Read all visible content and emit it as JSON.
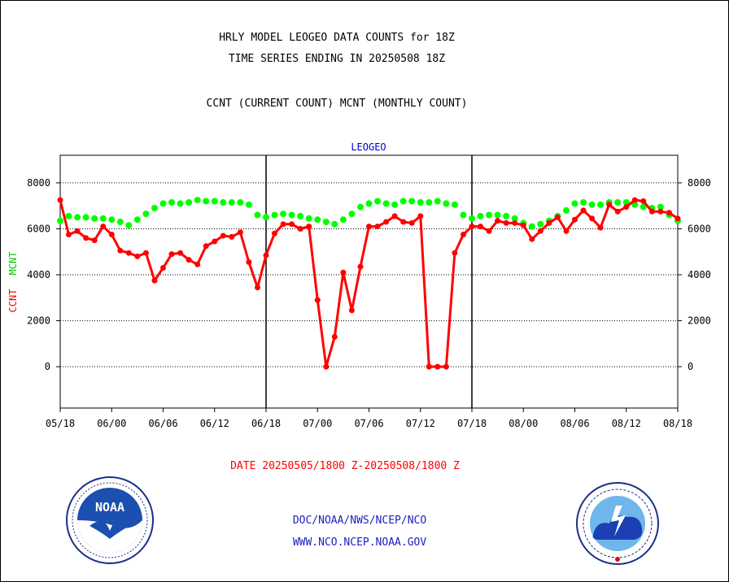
{
  "titles": {
    "line1": "HRLY MODEL LEOGEO DATA COUNTS for 18Z",
    "line2": "TIME SERIES ENDING IN 20250508 18Z",
    "line3": "CCNT (CURRENT COUNT) MCNT (MONTHLY COUNT)"
  },
  "date_range": "DATE 20250505/1800 Z-20250508/1800 Z",
  "footer": {
    "line1": "DOC/NOAA/NWS/NCEP/NCO",
    "line2": "WWW.NCO.NCEP.NOAA.GOV"
  },
  "logos": {
    "noaa": {
      "name": "noaa-logo",
      "text": "NOAA"
    },
    "nws": {
      "name": "nws-logo"
    }
  },
  "colors": {
    "ccnt": "#ff0000",
    "mcnt": "#00ff00",
    "panel_title": "#0000cc",
    "axes": "#000000"
  },
  "chart_data": {
    "type": "line",
    "panel_title": "LEOGEO",
    "ylabel_left_ccnt": "CCNT",
    "ylabel_left_mcnt": "MCNT",
    "ylim": [
      -1800,
      9200
    ],
    "yticks": [
      0,
      2000,
      4000,
      6000,
      8000
    ],
    "ytick_labels": [
      "0",
      "2000",
      "4000",
      "6000",
      "8000"
    ],
    "xlim": [
      0,
      72
    ],
    "xticks": [
      0,
      6,
      12,
      18,
      24,
      30,
      36,
      42,
      48,
      54,
      60,
      66,
      72
    ],
    "xtick_labels": [
      "05/18",
      "06/00",
      "06/06",
      "06/12",
      "06/18",
      "07/00",
      "07/06",
      "07/12",
      "07/18",
      "08/00",
      "08/06",
      "08/12",
      "08/18"
    ],
    "day_dividers": [
      24,
      48
    ],
    "grid": "horizontal dotted",
    "series": [
      {
        "name": "CCNT",
        "color": "#ff0000",
        "x": [
          0,
          1,
          2,
          3,
          4,
          5,
          6,
          7,
          8,
          9,
          10,
          11,
          12,
          13,
          14,
          15,
          16,
          17,
          18,
          19,
          20,
          21,
          22,
          23,
          24,
          25,
          26,
          27,
          28,
          29,
          30,
          31,
          32,
          33,
          34,
          35,
          36,
          37,
          38,
          39,
          40,
          41,
          42,
          43,
          44,
          45,
          46,
          47,
          48,
          49,
          50,
          51,
          52,
          53,
          54,
          55,
          56,
          57,
          58,
          59,
          60,
          61,
          62,
          63,
          64,
          65,
          66,
          67,
          68,
          69,
          70,
          71,
          72
        ],
        "values": [
          7250,
          5750,
          5900,
          5600,
          5500,
          6100,
          5750,
          5050,
          4950,
          4800,
          4950,
          3750,
          4300,
          4900,
          4950,
          4650,
          4450,
          5250,
          5450,
          5700,
          5650,
          5850,
          4550,
          3450,
          4850,
          5800,
          6200,
          6200,
          6000,
          6100,
          2900,
          0,
          1300,
          4100,
          2450,
          4350,
          6100,
          6100,
          6300,
          6550,
          6300,
          6250,
          6550,
          0,
          0,
          0,
          4950,
          5750,
          6100,
          6100,
          5900,
          6350,
          6250,
          6250,
          6150,
          5550,
          5900,
          6250,
          6500,
          5900,
          6400,
          6800,
          6450,
          6050,
          7050,
          6750,
          6950,
          7250,
          7200,
          6750,
          6750,
          6700,
          6450
        ]
      },
      {
        "name": "MCNT",
        "color": "#00ff00",
        "x": [
          0,
          1,
          2,
          3,
          4,
          5,
          6,
          7,
          8,
          9,
          10,
          11,
          12,
          13,
          14,
          15,
          16,
          17,
          18,
          19,
          20,
          21,
          22,
          23,
          24,
          25,
          26,
          27,
          28,
          29,
          30,
          31,
          32,
          33,
          34,
          35,
          36,
          37,
          38,
          39,
          40,
          41,
          42,
          43,
          44,
          45,
          46,
          47,
          48,
          49,
          50,
          51,
          52,
          53,
          54,
          55,
          56,
          57,
          58,
          59,
          60,
          61,
          62,
          63,
          64,
          65,
          66,
          67,
          68,
          69,
          70,
          71,
          72
        ],
        "values": [
          6350,
          6550,
          6500,
          6500,
          6450,
          6450,
          6400,
          6300,
          6150,
          6400,
          6650,
          6900,
          7100,
          7150,
          7100,
          7150,
          7250,
          7200,
          7200,
          7150,
          7150,
          7150,
          7050,
          6600,
          6500,
          6600,
          6650,
          6600,
          6550,
          6450,
          6400,
          6300,
          6200,
          6400,
          6650,
          6950,
          7100,
          7200,
          7100,
          7050,
          7200,
          7200,
          7150,
          7150,
          7200,
          7100,
          7050,
          6600,
          6450,
          6550,
          6600,
          6600,
          6550,
          6450,
          6250,
          6100,
          6200,
          6350,
          6550,
          6800,
          7100,
          7150,
          7050,
          7050,
          7150,
          7150,
          7150,
          7050,
          6950,
          6900,
          6950,
          6600,
          6350
        ]
      }
    ]
  }
}
